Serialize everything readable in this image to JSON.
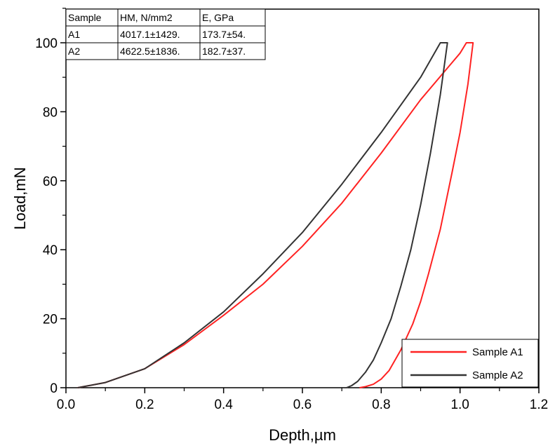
{
  "chart_data": {
    "type": "line",
    "title": "",
    "xlabel": "Depth,µm",
    "ylabel": "Load,mN",
    "xlim": [
      0.0,
      1.2
    ],
    "ylim": [
      0,
      100
    ],
    "xticks": [
      0.0,
      0.2,
      0.4,
      0.6,
      0.8,
      1.0,
      1.2
    ],
    "xtick_labels": [
      "0.0",
      "0.2",
      "0.4",
      "0.6",
      "0.8",
      "1.0",
      "1.2"
    ],
    "yticks": [
      0,
      20,
      40,
      60,
      80,
      100
    ],
    "ytick_labels": [
      "0",
      "20",
      "40",
      "60",
      "80",
      "100"
    ],
    "grid": false,
    "legend_position": "bottom-right",
    "series": [
      {
        "name": "Sample A1",
        "color": "#ff2222",
        "x": [
          0.03,
          0.1,
          0.2,
          0.3,
          0.4,
          0.5,
          0.6,
          0.7,
          0.8,
          0.9,
          1.0,
          1.016,
          1.033,
          1.02,
          1.0,
          0.98,
          0.95,
          0.92,
          0.9,
          0.88,
          0.85,
          0.82,
          0.8,
          0.78,
          0.76,
          0.745
        ],
        "y": [
          0,
          1.5,
          5.5,
          12.5,
          21,
          30,
          41,
          53.5,
          68,
          83.5,
          97,
          100,
          100,
          88,
          74,
          62.5,
          46,
          33,
          25,
          18.5,
          11,
          5,
          2.5,
          1,
          0.3,
          0
        ]
      },
      {
        "name": "Sample A2",
        "color": "#333333",
        "x": [
          0.03,
          0.1,
          0.2,
          0.3,
          0.4,
          0.5,
          0.6,
          0.7,
          0.8,
          0.9,
          0.95,
          0.968,
          0.95,
          0.925,
          0.9,
          0.875,
          0.85,
          0.825,
          0.8,
          0.78,
          0.76,
          0.74,
          0.725,
          0.712
        ],
        "y": [
          0,
          1.5,
          5.5,
          13,
          22,
          33,
          45,
          59,
          74,
          90,
          100,
          100,
          85,
          68,
          53,
          40,
          29.5,
          20,
          13,
          8,
          4.5,
          1.8,
          0.6,
          0
        ]
      }
    ],
    "table": {
      "headers": [
        "Sample",
        "HM, N/mm2",
        "E, GPa"
      ],
      "rows": [
        [
          "A1",
          "4017.1±1429.",
          "173.7±54."
        ],
        [
          "A2",
          "4622.5±1836.",
          "182.7±37."
        ]
      ]
    }
  }
}
